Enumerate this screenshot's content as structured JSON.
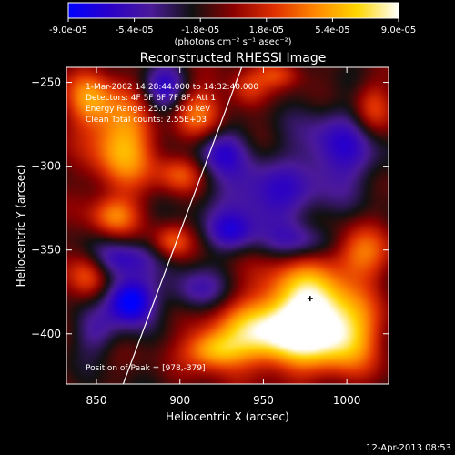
{
  "colorbar": {
    "tick_labels": [
      "-9.0e-05",
      "-5.4e-05",
      "-1.8e-05",
      "1.8e-05",
      "5.4e-05",
      "9.0e-05"
    ],
    "range": [
      -9e-05,
      9e-05
    ],
    "unit_label": "(photons cm⁻² s⁻¹ asec⁻²)",
    "gradient": [
      "#0000ff",
      "#2a00c8",
      "#4b1a99",
      "#111111",
      "#8c0000",
      "#e03000",
      "#ff8800",
      "#ffd600",
      "#ffffff"
    ]
  },
  "chart_data": {
    "type": "heatmap",
    "title": "Reconstructed RHESSI Image",
    "xlabel": "Heliocentric X (arcsec)",
    "ylabel": "Heliocentric Y (arcsec)",
    "xlim": [
      832,
      1025
    ],
    "ylim": [
      -430,
      -241
    ],
    "x_ticks": [
      850,
      900,
      950,
      1000
    ],
    "y_ticks": [
      -250,
      -300,
      -350,
      -400
    ],
    "grid": false,
    "info_lines": [
      "1-Mar-2002 14:28:44.000 to 14:32:40.000",
      "Detectors: 4F 5F 6F 7F 8F, Att 1",
      "Energy Range: 25.0 - 50.0 keV",
      "Clean    Total counts: 2.55E+03"
    ],
    "peak_label": "Position of Peak = [978,-379]",
    "peak": [
      978,
      -379
    ],
    "limb_line": [
      [
        866,
        -430
      ],
      [
        937,
        -241
      ]
    ],
    "features": [
      {
        "x": 975,
        "y": -385,
        "sx": 18,
        "sy": 22,
        "a": 1.0
      },
      {
        "x": 950,
        "y": -400,
        "sx": 24,
        "sy": 14,
        "a": 0.85
      },
      {
        "x": 1000,
        "y": -400,
        "sx": 14,
        "sy": 16,
        "a": 0.75
      },
      {
        "x": 920,
        "y": -410,
        "sx": 12,
        "sy": 8,
        "a": 0.65
      },
      {
        "x": 865,
        "y": -285,
        "sx": 14,
        "sy": 22,
        "a": 0.8
      },
      {
        "x": 845,
        "y": -260,
        "sx": 10,
        "sy": 12,
        "a": 0.55
      },
      {
        "x": 910,
        "y": -268,
        "sx": 12,
        "sy": 12,
        "a": 0.55
      },
      {
        "x": 900,
        "y": -305,
        "sx": 10,
        "sy": 8,
        "a": 0.45
      },
      {
        "x": 860,
        "y": -330,
        "sx": 10,
        "sy": 8,
        "a": 0.5
      },
      {
        "x": 895,
        "y": -345,
        "sx": 8,
        "sy": 7,
        "a": 0.45
      },
      {
        "x": 845,
        "y": -365,
        "sx": 8,
        "sy": 10,
        "a": 0.5
      },
      {
        "x": 1008,
        "y": -352,
        "sx": 12,
        "sy": 12,
        "a": 0.55
      },
      {
        "x": 1015,
        "y": -265,
        "sx": 8,
        "sy": 12,
        "a": 0.45
      },
      {
        "x": 940,
        "y": -255,
        "sx": 8,
        "sy": 8,
        "a": 0.35
      },
      {
        "x": 960,
        "y": -245,
        "sx": 10,
        "sy": 6,
        "a": 0.4
      },
      {
        "x": 870,
        "y": -380,
        "sx": 10,
        "sy": 10,
        "a": -0.95
      },
      {
        "x": 950,
        "y": -320,
        "sx": 22,
        "sy": 16,
        "a": -0.55
      },
      {
        "x": 890,
        "y": -255,
        "sx": 10,
        "sy": 12,
        "a": -0.6
      },
      {
        "x": 925,
        "y": -290,
        "sx": 12,
        "sy": 10,
        "a": -0.5
      },
      {
        "x": 995,
        "y": -290,
        "sx": 18,
        "sy": 18,
        "a": -0.55
      },
      {
        "x": 865,
        "y": -355,
        "sx": 14,
        "sy": 8,
        "a": -0.5
      },
      {
        "x": 975,
        "y": -345,
        "sx": 16,
        "sy": 8,
        "a": -0.45
      },
      {
        "x": 850,
        "y": -400,
        "sx": 10,
        "sy": 10,
        "a": -0.35
      },
      {
        "x": 910,
        "y": -375,
        "sx": 12,
        "sy": 10,
        "a": -0.45
      },
      {
        "x": 930,
        "y": -340,
        "sx": 10,
        "sy": 8,
        "a": -0.4
      }
    ]
  },
  "footer": {
    "timestamp": "12-Apr-2013 08:53"
  }
}
